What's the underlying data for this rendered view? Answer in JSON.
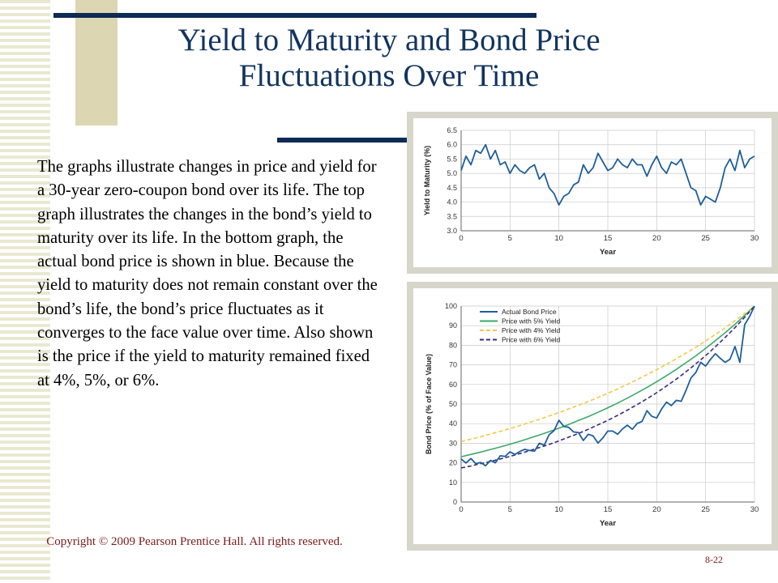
{
  "slide": {
    "title_line1": "Yield to Maturity and Bond Price",
    "title_line2": "Fluctuations Over Time",
    "body": "The graphs illustrate changes in price and yield for a 30-year zero-coupon bond over its life. The top graph illustrates the changes in the bond’s yield to maturity over its life. In the bottom graph, the actual bond price is shown in blue. Because the yield to maturity does not remain constant over the bond’s life, the bond’s price fluctuates as it converges to the face value over time. Also shown is the price if the yield to maturity remained fixed at 4%, 5%, or 6%.",
    "copyright": "Copyright © 2009 Pearson Prentice Hall. All rights reserved.",
    "page_number": "8-22"
  },
  "colors": {
    "title": "#12345f",
    "rule": "#0e2a55",
    "actual": "#1f5f99",
    "yield5": "#3aaa6a",
    "yield4": "#f2c84b",
    "yield6": "#3b2a85",
    "copyright": "#7a1a1a"
  },
  "chart_data": [
    {
      "type": "line",
      "title": "",
      "xlabel": "Year",
      "ylabel": "Yield to Maturity (%)",
      "xlim": [
        0,
        30
      ],
      "ylim": [
        3.0,
        6.5
      ],
      "xticks": [
        "0",
        "5",
        "10",
        "15",
        "20",
        "25",
        "30"
      ],
      "yticks": [
        "3.0",
        "3.5",
        "4.0",
        "4.5",
        "5.0",
        "5.5",
        "6.0",
        "6.5"
      ],
      "grid": true,
      "series": [
        {
          "x": [
            0,
            0.5,
            1,
            1.5,
            2,
            2.5,
            3,
            3.5,
            4,
            4.5,
            5,
            5.5,
            6,
            6.5,
            7,
            7.5,
            8,
            8.5,
            9,
            9.5,
            10,
            10.5,
            11,
            11.5,
            12,
            12.5,
            13,
            13.5,
            14,
            14.5,
            15,
            15.5,
            16,
            16.5,
            17,
            17.5,
            18,
            18.5,
            19,
            19.5,
            20,
            20.5,
            21,
            21.5,
            22,
            22.5,
            23,
            23.5,
            24,
            24.5,
            25,
            25.5,
            26,
            26.5,
            27,
            27.5,
            28,
            28.5,
            29,
            29.5,
            30
          ],
          "values": [
            5.1,
            5.6,
            5.3,
            5.8,
            5.7,
            6.0,
            5.5,
            5.8,
            5.3,
            5.4,
            5.0,
            5.3,
            5.1,
            5.0,
            5.2,
            5.3,
            4.8,
            5.0,
            4.5,
            4.3,
            3.9,
            4.2,
            4.3,
            4.6,
            4.7,
            5.3,
            5.0,
            5.2,
            5.7,
            5.4,
            5.1,
            5.2,
            5.5,
            5.3,
            5.2,
            5.5,
            5.3,
            5.3,
            4.9,
            5.3,
            5.6,
            5.2,
            5.0,
            5.4,
            5.3,
            5.5,
            5.0,
            4.5,
            4.4,
            3.9,
            4.2,
            4.1,
            4.0,
            4.5,
            5.2,
            5.5,
            5.1,
            5.8,
            5.2,
            5.5,
            5.6
          ]
        }
      ]
    },
    {
      "type": "line",
      "title": "",
      "xlabel": "Year",
      "ylabel": "Bond Price (% of Face Value)",
      "xlim": [
        0,
        30
      ],
      "ylim": [
        0,
        100
      ],
      "xticks": [
        "0",
        "5",
        "10",
        "15",
        "20",
        "25",
        "30"
      ],
      "yticks": [
        "0",
        "10",
        "20",
        "30",
        "40",
        "50",
        "60",
        "70",
        "80",
        "90",
        "100"
      ],
      "grid": true,
      "legend": "top-left",
      "series": [
        {
          "name": "Actual Bond Price",
          "x": [
            0,
            0.5,
            1,
            1.5,
            2,
            2.5,
            3,
            3.5,
            4,
            4.5,
            5,
            5.5,
            6,
            6.5,
            7,
            7.5,
            8,
            8.5,
            9,
            9.5,
            10,
            10.5,
            11,
            11.5,
            12,
            12.5,
            13,
            13.5,
            14,
            14.5,
            15,
            15.5,
            16,
            16.5,
            17,
            17.5,
            18,
            18.5,
            19,
            19.5,
            20,
            20.5,
            21,
            21.5,
            22,
            22.5,
            23,
            23.5,
            24,
            24.5,
            25,
            25.5,
            26,
            26.5,
            27,
            27.5,
            28,
            28.5,
            29,
            29.5,
            30
          ],
          "values": [
            22.0,
            19.9,
            22.2,
            19.6,
            20.2,
            18.5,
            21.3,
            20.0,
            23.6,
            23.3,
            25.6,
            24.3,
            25.8,
            26.9,
            26.3,
            26.0,
            30.0,
            29.0,
            34.4,
            36.4,
            41.7,
            38.6,
            38.1,
            35.8,
            35.4,
            31.4,
            34.6,
            33.7,
            30.1,
            32.8,
            36.2,
            36.2,
            34.6,
            37.3,
            39.2,
            37.1,
            40.1,
            41.1,
            46.6,
            43.7,
            42.9,
            47.5,
            51.0,
            49.2,
            51.9,
            51.4,
            57.0,
            63.3,
            66.1,
            71.3,
            69.4,
            72.8,
            75.7,
            73.3,
            71.3,
            72.9,
            79.4,
            71.3,
            90.5,
            94.7,
            100.0
          ]
        },
        {
          "name": "Price with 5% Yield",
          "x": [
            0,
            1,
            2,
            3,
            4,
            5,
            6,
            7,
            8,
            9,
            10,
            11,
            12,
            13,
            14,
            15,
            16,
            17,
            18,
            19,
            20,
            21,
            22,
            23,
            24,
            25,
            26,
            27,
            28,
            29,
            30
          ],
          "values": [
            23.1,
            24.3,
            25.5,
            26.8,
            28.1,
            29.5,
            31.0,
            32.6,
            34.2,
            35.9,
            37.7,
            39.6,
            41.6,
            43.6,
            45.8,
            48.1,
            50.5,
            53.0,
            55.7,
            58.5,
            61.4,
            64.5,
            67.7,
            71.1,
            74.6,
            78.4,
            82.3,
            86.4,
            90.7,
            95.2,
            100.0
          ]
        },
        {
          "name": "Price with 4% Yield",
          "x": [
            0,
            1,
            2,
            3,
            4,
            5,
            6,
            7,
            8,
            9,
            10,
            11,
            12,
            13,
            14,
            15,
            16,
            17,
            18,
            19,
            20,
            21,
            22,
            23,
            24,
            25,
            26,
            27,
            28,
            29,
            30
          ],
          "values": [
            30.8,
            32.1,
            33.3,
            34.7,
            36.1,
            37.5,
            39.0,
            40.6,
            42.2,
            43.9,
            45.6,
            47.5,
            49.4,
            51.3,
            53.4,
            55.5,
            57.7,
            60.1,
            62.5,
            65.0,
            67.6,
            70.3,
            73.1,
            76.0,
            79.0,
            82.2,
            85.5,
            88.9,
            92.5,
            96.2,
            100.0
          ]
        },
        {
          "name": "Price with 6% Yield",
          "x": [
            0,
            1,
            2,
            3,
            4,
            5,
            6,
            7,
            8,
            9,
            10,
            11,
            12,
            13,
            14,
            15,
            16,
            17,
            18,
            19,
            20,
            21,
            22,
            23,
            24,
            25,
            26,
            27,
            28,
            29,
            30
          ],
          "values": [
            17.4,
            18.4,
            19.6,
            20.7,
            22.0,
            23.3,
            24.7,
            26.2,
            27.8,
            29.4,
            31.2,
            33.1,
            35.0,
            37.1,
            39.4,
            41.7,
            44.2,
            46.9,
            49.7,
            52.7,
            55.8,
            59.2,
            62.7,
            66.5,
            70.5,
            74.7,
            79.2,
            84.0,
            89.0,
            94.3,
            100.0
          ]
        }
      ]
    }
  ]
}
